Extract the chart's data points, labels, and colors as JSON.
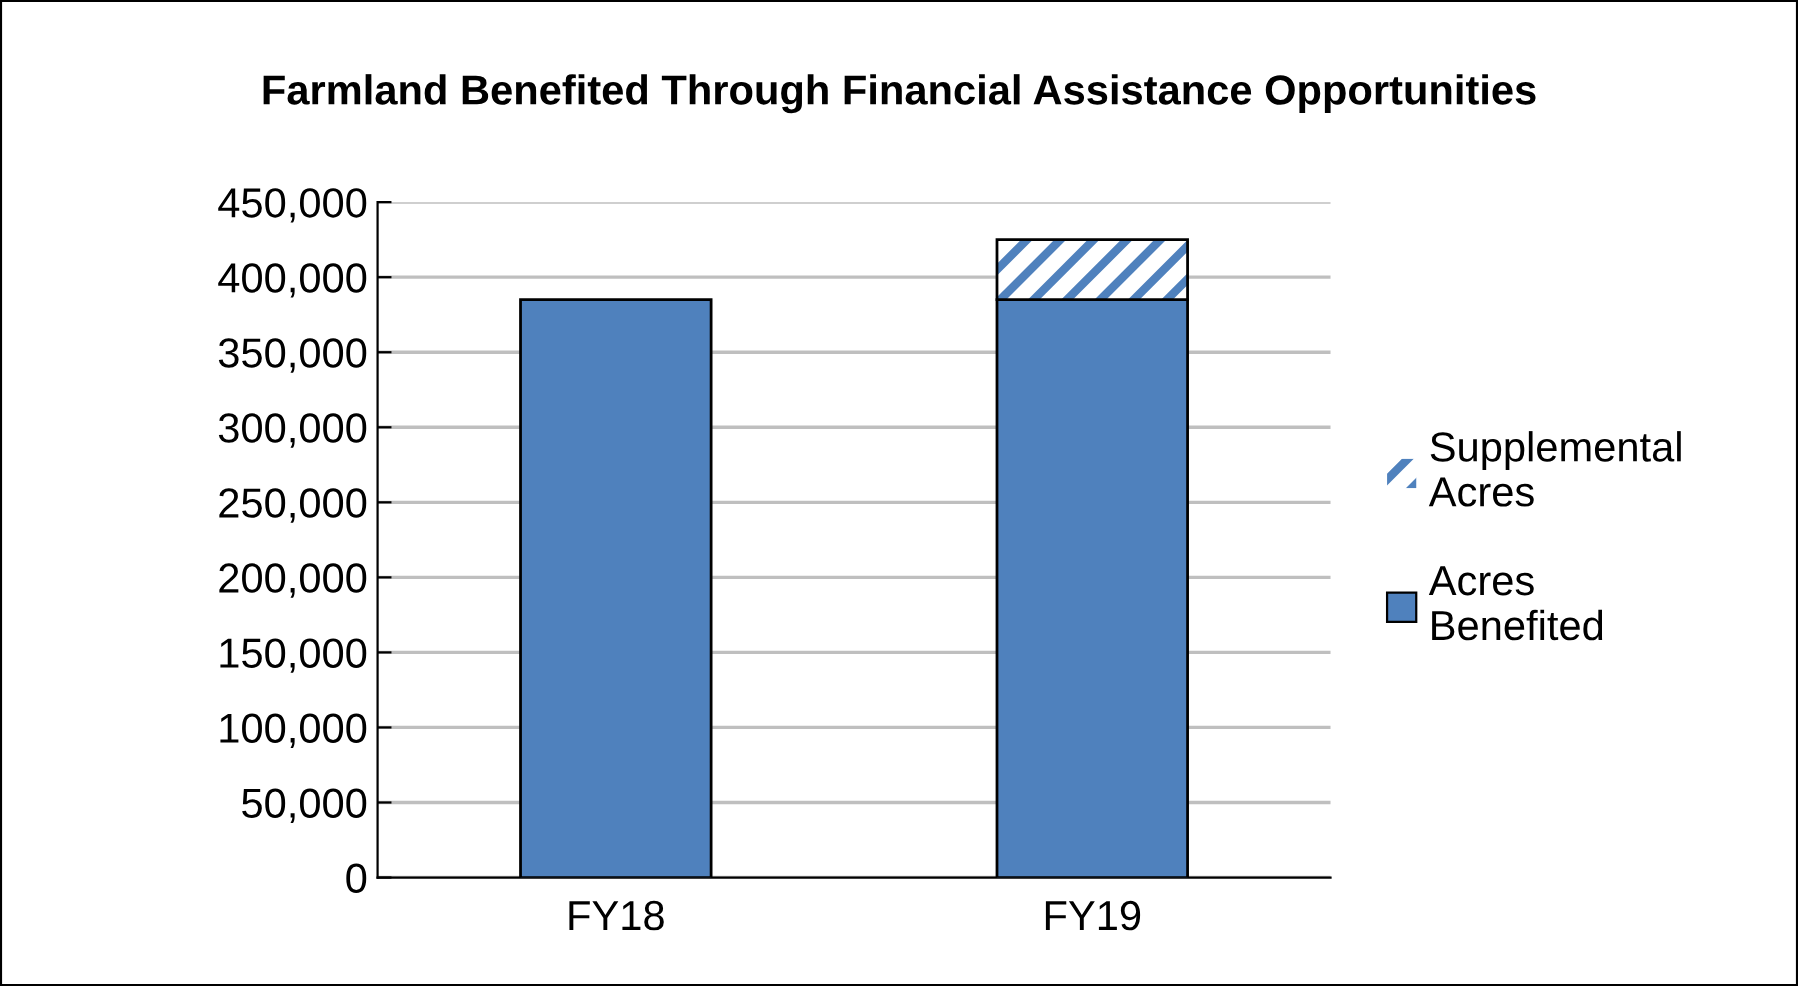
{
  "chart_data": {
    "type": "bar",
    "title": "Farmland Benefited Through Financial Assistance Opportunities",
    "categories": [
      "FY18",
      "FY19"
    ],
    "stacked": true,
    "series": [
      {
        "name": "Acres\nBenefited",
        "color": "#4f81bd",
        "values": [
          385000,
          385000
        ]
      },
      {
        "name": "Supplemental\nAcres",
        "color": "#4f81bd",
        "values": [
          null,
          40000
        ]
      }
    ],
    "ylim": [
      0,
      450000
    ],
    "yticks": [
      {
        "value": 0,
        "label": "0"
      },
      {
        "value": 50000,
        "label": "50,000"
      },
      {
        "value": 100000,
        "label": "100,000"
      },
      {
        "value": 150000,
        "label": "150,000"
      },
      {
        "value": 200000,
        "label": "200,000"
      },
      {
        "value": 250000,
        "label": "250,000"
      },
      {
        "value": 300000,
        "label": "300,000"
      },
      {
        "value": 350000,
        "label": "350,000"
      },
      {
        "value": 400000,
        "label": "400,000"
      },
      {
        "value": 450000,
        "label": "450,000"
      }
    ],
    "grid": "y",
    "legend": "right"
  }
}
